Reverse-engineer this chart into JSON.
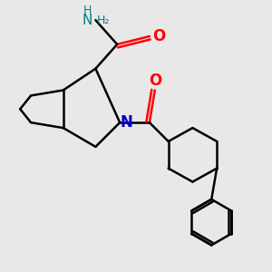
{
  "bg_color": "#e8e8e8",
  "bond_color": "#000000",
  "bond_width": 1.8,
  "N_color": "#0000cc",
  "O_color": "#ff0000",
  "NH2_H_color": "#008080",
  "NH2_N_color": "#008080",
  "figsize": [
    3.0,
    3.0
  ],
  "dpi": 100,
  "xlim": [
    0,
    10
  ],
  "ylim": [
    0,
    10
  ]
}
